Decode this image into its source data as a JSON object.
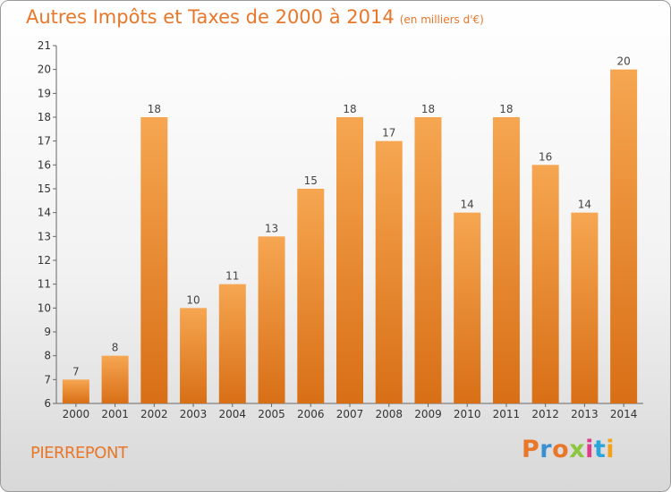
{
  "header": {
    "title": "Autres Impôts et Taxes de 2000 à 2014",
    "unit": "(en milliers d'€)"
  },
  "footer": {
    "commune": "PIERREPONT",
    "logo": "Proxiti",
    "logo_colors": [
      "#e8772a",
      "#3a8fd0",
      "#e8772a",
      "#8cc63e",
      "#e03b8b",
      "#2aa5d8",
      "#f2a31b"
    ]
  },
  "colors": {
    "bar_top": "#f6a651",
    "bar_bottom": "#d86f16",
    "accent": "#e8772a"
  },
  "chart_data": {
    "type": "bar",
    "title": "Autres Impôts et Taxes de 2000 à 2014",
    "subtitle": "(en milliers d'€)",
    "categories": [
      "2000",
      "2001",
      "2002",
      "2003",
      "2004",
      "2005",
      "2006",
      "2007",
      "2008",
      "2009",
      "2010",
      "2011",
      "2012",
      "2013",
      "2014"
    ],
    "values": [
      7,
      8,
      18,
      10,
      11,
      13,
      15,
      18,
      17,
      18,
      14,
      18,
      16,
      14,
      20
    ],
    "ylim": [
      6,
      21
    ],
    "yticks": [
      6,
      7,
      8,
      9,
      10,
      11,
      12,
      13,
      14,
      15,
      16,
      17,
      18,
      19,
      20,
      21
    ],
    "grid": false,
    "legend": "none"
  }
}
